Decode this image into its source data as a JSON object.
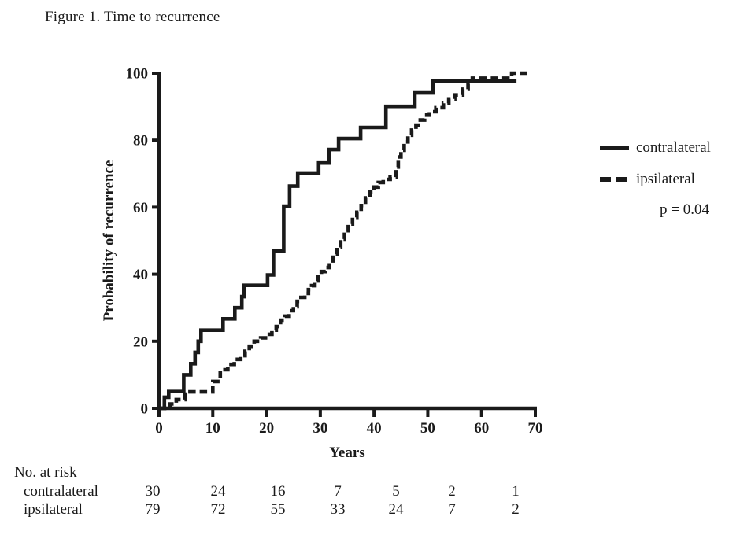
{
  "figure": {
    "title": "Figure 1. Time to recurrence"
  },
  "legend": {
    "items": [
      {
        "label": "contralateral",
        "style": "solid"
      },
      {
        "label": "ipsilateral",
        "style": "dashed"
      }
    ],
    "p_value": "p = 0.04"
  },
  "risk_table": {
    "title": "No. at risk",
    "rows": [
      {
        "label": "contralateral",
        "counts": [
          30,
          24,
          16,
          7,
          5,
          2,
          1
        ]
      },
      {
        "label": "ipsilateral",
        "counts": [
          79,
          72,
          55,
          33,
          24,
          7,
          2
        ]
      }
    ]
  },
  "chart_data": {
    "type": "line",
    "subtype": "step",
    "title": "Figure 1. Time to recurrence",
    "xlabel": "Years",
    "ylabel": "Probability of recurrence",
    "xlim": [
      0,
      70
    ],
    "ylim": [
      0,
      100
    ],
    "x_ticks": [
      0,
      10,
      20,
      30,
      40,
      50,
      60,
      70
    ],
    "y_ticks": [
      0,
      20,
      40,
      60,
      80,
      100
    ],
    "grid": false,
    "legend_position": "right",
    "line_color": "#1a1a1a",
    "series": [
      {
        "name": "contralateral",
        "style": "solid",
        "x_end": 66.5,
        "points": [
          [
            0,
            0
          ],
          [
            1,
            3.3
          ],
          [
            1.8,
            5
          ],
          [
            4.6,
            10
          ],
          [
            5.9,
            13.3
          ],
          [
            6.7,
            16.7
          ],
          [
            7.3,
            20
          ],
          [
            7.8,
            23.3
          ],
          [
            11.9,
            26.7
          ],
          [
            14.1,
            30
          ],
          [
            15.4,
            33.3
          ],
          [
            15.8,
            36.7
          ],
          [
            20.2,
            39.8
          ],
          [
            21.3,
            47
          ],
          [
            23.2,
            60.3
          ],
          [
            24.3,
            66.3
          ],
          [
            25.8,
            70.2
          ],
          [
            29.7,
            73.2
          ],
          [
            31.6,
            77.2
          ],
          [
            33.4,
            80.5
          ],
          [
            37.5,
            83.8
          ],
          [
            42.2,
            90.1
          ],
          [
            47.6,
            94.1
          ],
          [
            51,
            97.7
          ]
        ]
      },
      {
        "name": "ipsilateral",
        "style": "dashed",
        "x_end": 69,
        "points": [
          [
            0,
            0
          ],
          [
            2,
            1.3
          ],
          [
            3.2,
            2.6
          ],
          [
            4.8,
            4.9
          ],
          [
            10,
            8
          ],
          [
            11.4,
            11.5
          ],
          [
            12.8,
            13.1
          ],
          [
            14,
            14.6
          ],
          [
            15.2,
            15.7
          ],
          [
            16,
            17
          ],
          [
            16.8,
            18.5
          ],
          [
            17.7,
            20
          ],
          [
            18.9,
            21
          ],
          [
            20.2,
            22.1
          ],
          [
            21,
            23.3
          ],
          [
            21.8,
            24.4
          ],
          [
            22.6,
            26.3
          ],
          [
            23.4,
            27.5
          ],
          [
            24.2,
            29.1
          ],
          [
            25,
            30.3
          ],
          [
            25.7,
            31.9
          ],
          [
            26.4,
            33.1
          ],
          [
            27.1,
            34.3
          ],
          [
            27.8,
            35.4
          ],
          [
            28.4,
            36.6
          ],
          [
            29,
            38
          ],
          [
            29.6,
            39.2
          ],
          [
            30.2,
            40.8
          ],
          [
            31,
            42
          ],
          [
            31.7,
            44
          ],
          [
            32.4,
            46
          ],
          [
            33.1,
            48
          ],
          [
            33.8,
            50.5
          ],
          [
            34.5,
            53
          ],
          [
            35.2,
            55
          ],
          [
            36,
            57
          ],
          [
            36.8,
            58.5
          ],
          [
            37.6,
            60.5
          ],
          [
            38.4,
            62.8
          ],
          [
            39.2,
            64.5
          ],
          [
            40,
            66
          ],
          [
            40.8,
            67.4
          ],
          [
            41.7,
            68.3
          ],
          [
            43,
            69
          ],
          [
            44.1,
            72
          ],
          [
            44.5,
            75
          ],
          [
            45,
            77
          ],
          [
            45.6,
            79.5
          ],
          [
            46.3,
            81.5
          ],
          [
            47,
            83
          ],
          [
            47.8,
            84.5
          ],
          [
            48.6,
            86
          ],
          [
            49.4,
            87.5
          ],
          [
            50.3,
            88.5
          ],
          [
            51.5,
            89.7
          ],
          [
            52.9,
            91
          ],
          [
            53.9,
            92.3
          ],
          [
            55,
            93.5
          ],
          [
            56.5,
            95.2
          ],
          [
            57.5,
            96.8
          ],
          [
            58.3,
            98.5
          ],
          [
            65.6,
            100
          ]
        ]
      }
    ]
  }
}
